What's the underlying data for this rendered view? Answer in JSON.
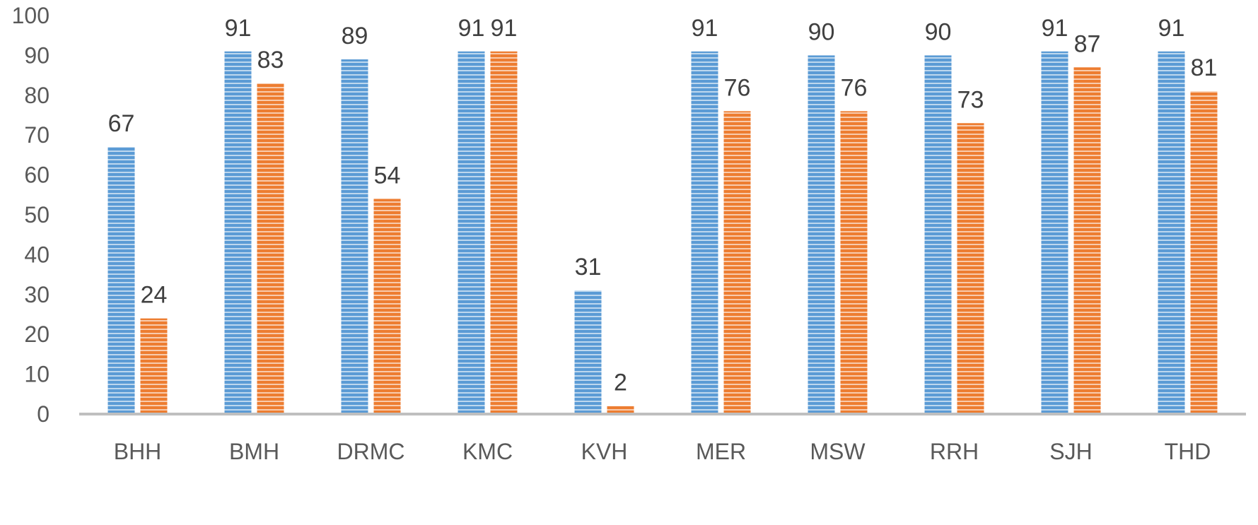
{
  "chart_data": {
    "type": "bar",
    "title": "",
    "xlabel": "",
    "ylabel": "",
    "categories": [
      "BHH",
      "BMH",
      "DRMC",
      "KMC",
      "KVH",
      "MER",
      "MSW",
      "RRH",
      "SJH",
      "THD"
    ],
    "series": [
      {
        "color": "#5B9BD5",
        "stripe_color": "#BDD7EE",
        "values": [
          67,
          91,
          89,
          91,
          31,
          91,
          90,
          90,
          91,
          91
        ]
      },
      {
        "color": "#ED7D31",
        "stripe_color": "#F8CBAD",
        "values": [
          24,
          83,
          54,
          91,
          2,
          76,
          76,
          73,
          87,
          81
        ]
      }
    ],
    "ylim": [
      0,
      100
    ],
    "yticks": [
      0,
      10,
      20,
      30,
      40,
      50,
      60,
      70,
      80,
      90,
      100
    ],
    "grid": false,
    "legend": "none",
    "axis_color": "#BFBFBF"
  }
}
